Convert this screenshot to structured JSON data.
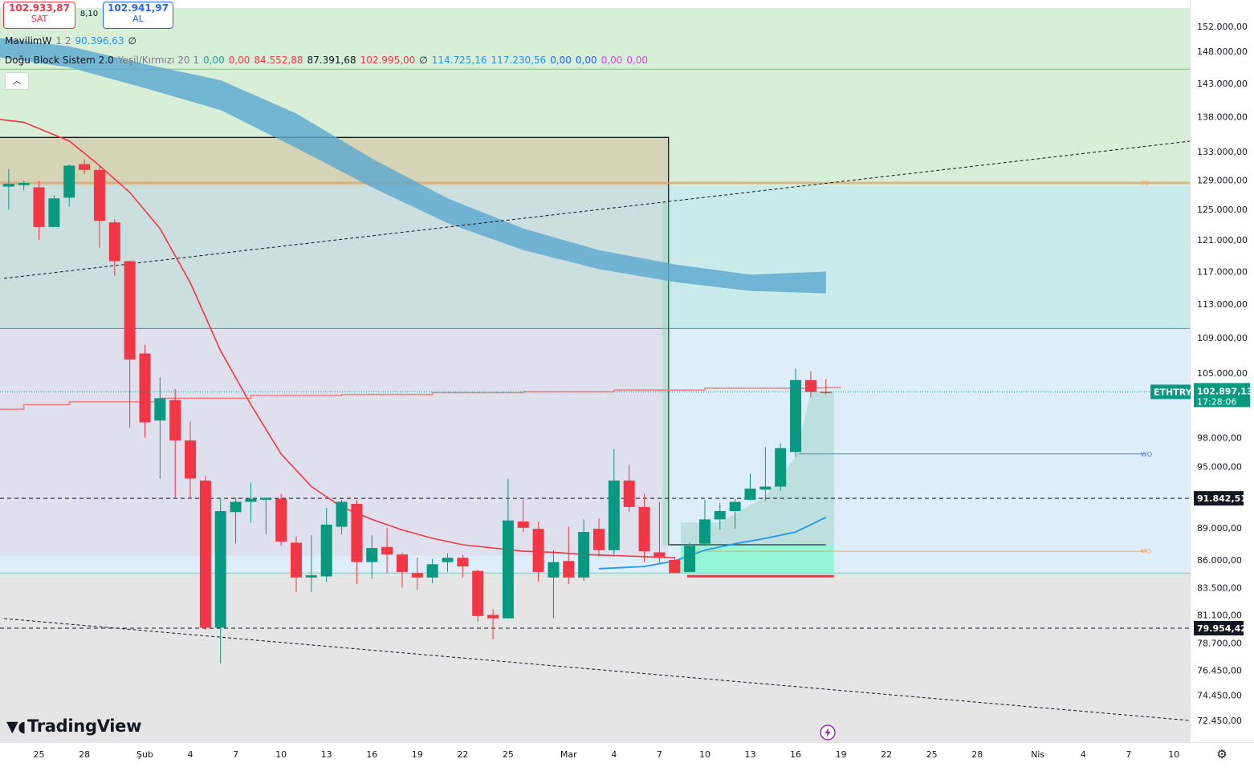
{
  "quote": {
    "sell_price": "102.933,87",
    "sell_label": "SAT",
    "spread": "8,10",
    "buy_price": "102.941,97",
    "buy_label": "AL"
  },
  "legend": {
    "line1": {
      "name": "MavilimW",
      "params": "1 2",
      "value": "90.396,63",
      "marker": "∅"
    },
    "line2": {
      "name": "Doğu Block Sistem 2.0",
      "params": "Yeşil/Kırmızı 20 1",
      "values": [
        {
          "text": "0,00",
          "color": "#26a69a"
        },
        {
          "text": "0,00",
          "color": "#f23645"
        },
        {
          "text": "84.552,88",
          "color": "#f23645"
        },
        {
          "text": "87.391,68",
          "color": "#131722"
        },
        {
          "text": "102.995,00",
          "color": "#f23645"
        },
        {
          "text": "∅",
          "color": "#131722"
        },
        {
          "text": "114.725,16",
          "color": "#2196f3"
        },
        {
          "text": "117.230,56",
          "color": "#2196f3"
        },
        {
          "text": "0,00",
          "color": "#2962ff"
        },
        {
          "text": "0,00",
          "color": "#2962ff"
        },
        {
          "text": "0,00",
          "color": "#e040fb"
        },
        {
          "text": "0,00",
          "color": "#e040fb"
        }
      ]
    },
    "collapse_glyph": "︿"
  },
  "branding": {
    "logo_text": "TradingView"
  },
  "chart_data": {
    "type": "candlestick",
    "symbol": "ETHTRY",
    "last_price": "102.897,13",
    "countdown": "17:28:06",
    "y_axis": {
      "scale": "log",
      "range": [
        70800,
        155000
      ],
      "ticks": [
        152000,
        148000,
        143000,
        138000,
        133000,
        129000,
        125000,
        121000,
        117000,
        113000,
        109000,
        105000,
        98000,
        95000,
        89000,
        86000,
        83500,
        81100,
        78700,
        76450,
        74450,
        72450
      ],
      "tick_labels": [
        "152.000,00",
        "148.000,00",
        "143.000,00",
        "138.000,00",
        "133.000,00",
        "129.000,00",
        "125.000,00",
        "121.000,00",
        "117.000,00",
        "113.000,00",
        "109.000,00",
        "105.000,00",
        "98.000,00",
        "95.000,00",
        "89.000,00",
        "86.000,00",
        "83.500,00",
        "81.100,00",
        "78.700,00",
        "76.450,00",
        "74.450,00",
        "72.450,00"
      ]
    },
    "x_axis": {
      "tick_labels": [
        "25",
        "28",
        "Şub",
        "4",
        "7",
        "10",
        "13",
        "16",
        "19",
        "22",
        "25",
        "Mar",
        "4",
        "7",
        "10",
        "13",
        "16",
        "19",
        "22",
        "25",
        "28",
        "Nis",
        "4",
        "7",
        "10"
      ],
      "tick_day_index": [
        -7,
        -4,
        0,
        3,
        6,
        9,
        12,
        15,
        18,
        21,
        24,
        28,
        31,
        34,
        37,
        40,
        43,
        46,
        49,
        52,
        55,
        59,
        62,
        65,
        68
      ]
    },
    "candles": [
      {
        "d": -9,
        "o": 128100,
        "h": 130500,
        "l": 125000,
        "c": 128500
      },
      {
        "d": -8,
        "o": 128300,
        "h": 128900,
        "l": 127600,
        "c": 128600
      },
      {
        "d": -7,
        "o": 128000,
        "h": 128900,
        "l": 121000,
        "c": 122700
      },
      {
        "d": -6,
        "o": 122700,
        "h": 126900,
        "l": 122700,
        "c": 126500
      },
      {
        "d": -5,
        "o": 126600,
        "h": 131200,
        "l": 125400,
        "c": 131000
      },
      {
        "d": -4,
        "o": 131200,
        "h": 131900,
        "l": 129800,
        "c": 130400
      },
      {
        "d": -3,
        "o": 130400,
        "h": 130900,
        "l": 120000,
        "c": 123500
      },
      {
        "d": -2,
        "o": 123300,
        "h": 123700,
        "l": 116500,
        "c": 118300
      },
      {
        "d": -1,
        "o": 118300,
        "h": 118300,
        "l": 99000,
        "c": 106500
      },
      {
        "d": 0,
        "o": 107200,
        "h": 108200,
        "l": 98000,
        "c": 99600
      },
      {
        "d": 1,
        "o": 99800,
        "h": 104500,
        "l": 93800,
        "c": 102200
      },
      {
        "d": 2,
        "o": 102000,
        "h": 103200,
        "l": 91900,
        "c": 97700
      },
      {
        "d": 3,
        "o": 97700,
        "h": 99700,
        "l": 91800,
        "c": 93800
      },
      {
        "d": 4,
        "o": 93600,
        "h": 94100,
        "l": 79800,
        "c": 80000
      },
      {
        "d": 5,
        "o": 80000,
        "h": 91800,
        "l": 77000,
        "c": 90600
      },
      {
        "d": 6,
        "o": 90500,
        "h": 91900,
        "l": 87500,
        "c": 91500
      },
      {
        "d": 7,
        "o": 91500,
        "h": 93400,
        "l": 89500,
        "c": 91800
      },
      {
        "d": 8,
        "o": 91700,
        "h": 91800,
        "l": 88400,
        "c": 91900
      },
      {
        "d": 9,
        "o": 91800,
        "h": 92300,
        "l": 87300,
        "c": 87700
      },
      {
        "d": 10,
        "o": 87600,
        "h": 88200,
        "l": 83100,
        "c": 84400
      },
      {
        "d": 11,
        "o": 84400,
        "h": 88300,
        "l": 83100,
        "c": 84600
      },
      {
        "d": 12,
        "o": 84500,
        "h": 90900,
        "l": 84000,
        "c": 89300
      },
      {
        "d": 13,
        "o": 89100,
        "h": 91700,
        "l": 88400,
        "c": 91500
      },
      {
        "d": 14,
        "o": 91300,
        "h": 91700,
        "l": 83800,
        "c": 85800
      },
      {
        "d": 15,
        "o": 85800,
        "h": 88300,
        "l": 84300,
        "c": 87100
      },
      {
        "d": 16,
        "o": 87200,
        "h": 89000,
        "l": 84800,
        "c": 86500
      },
      {
        "d": 17,
        "o": 86500,
        "h": 86700,
        "l": 83500,
        "c": 84900
      },
      {
        "d": 18,
        "o": 84800,
        "h": 86200,
        "l": 83300,
        "c": 84400
      },
      {
        "d": 19,
        "o": 84400,
        "h": 86100,
        "l": 83900,
        "c": 85600
      },
      {
        "d": 20,
        "o": 85800,
        "h": 86600,
        "l": 84900,
        "c": 86200
      },
      {
        "d": 21,
        "o": 86200,
        "h": 86500,
        "l": 84400,
        "c": 85400
      },
      {
        "d": 22,
        "o": 85000,
        "h": 85100,
        "l": 80500,
        "c": 81000
      },
      {
        "d": 23,
        "o": 81100,
        "h": 81600,
        "l": 79000,
        "c": 80800
      },
      {
        "d": 24,
        "o": 80800,
        "h": 93800,
        "l": 80800,
        "c": 89700
      },
      {
        "d": 25,
        "o": 89600,
        "h": 91700,
        "l": 88600,
        "c": 89000
      },
      {
        "d": 26,
        "o": 88900,
        "h": 89600,
        "l": 84000,
        "c": 84900
      },
      {
        "d": 27,
        "o": 84400,
        "h": 86900,
        "l": 80800,
        "c": 85800
      },
      {
        "d": 28,
        "o": 85900,
        "h": 89100,
        "l": 83800,
        "c": 84400
      },
      {
        "d": 29,
        "o": 84400,
        "h": 89800,
        "l": 84100,
        "c": 88600
      },
      {
        "d": 30,
        "o": 88900,
        "h": 89900,
        "l": 86300,
        "c": 86900
      },
      {
        "d": 31,
        "o": 86900,
        "h": 96800,
        "l": 86300,
        "c": 93600
      },
      {
        "d": 32,
        "o": 93600,
        "h": 95200,
        "l": 90500,
        "c": 91000
      },
      {
        "d": 33,
        "o": 91000,
        "h": 92300,
        "l": 85800,
        "c": 86800
      },
      {
        "d": 34,
        "o": 86700,
        "h": 91500,
        "l": 85600,
        "c": 86300
      },
      {
        "d": 35,
        "o": 86000,
        "h": 86300,
        "l": 84800,
        "c": 84800
      },
      {
        "d": 36,
        "o": 84900,
        "h": 87600,
        "l": 84900,
        "c": 87300
      },
      {
        "d": 37,
        "o": 87500,
        "h": 91700,
        "l": 87300,
        "c": 89800
      },
      {
        "d": 38,
        "o": 89800,
        "h": 91400,
        "l": 88800,
        "c": 90600
      },
      {
        "d": 39,
        "o": 90600,
        "h": 91800,
        "l": 88900,
        "c": 91500
      },
      {
        "d": 40,
        "o": 91700,
        "h": 94300,
        "l": 91600,
        "c": 92800
      },
      {
        "d": 41,
        "o": 92700,
        "h": 97000,
        "l": 91600,
        "c": 93000
      },
      {
        "d": 42,
        "o": 93000,
        "h": 97400,
        "l": 92600,
        "c": 96900
      },
      {
        "d": 43,
        "o": 96500,
        "h": 105500,
        "l": 96000,
        "c": 104200
      },
      {
        "d": 44,
        "o": 104200,
        "h": 105200,
        "l": 102300,
        "c": 102900
      },
      {
        "d": 45,
        "o": 102900,
        "h": 104300,
        "l": 102600,
        "c": 102897
      }
    ],
    "horizontal_lines": [
      {
        "price": 91842.51,
        "label": "91.842,51",
        "style": "dashed"
      },
      {
        "price": 79954.42,
        "label": "79.954,42",
        "style": "dashed"
      }
    ],
    "levels": [
      {
        "label": "YO",
        "price": 128600,
        "color": "#f7a35c"
      },
      {
        "label": "WO",
        "price": 96300,
        "color": "#5b7fd6"
      },
      {
        "label": "MO",
        "price": 86800,
        "color": "#f7a35c"
      }
    ],
    "zones": [
      {
        "from": 128200,
        "to": 155000,
        "color": "#d6efd6"
      },
      {
        "from": 110100,
        "to": 128200,
        "color": "#c9ecea"
      },
      {
        "from": 84800,
        "to": 110100,
        "color": "#ddeefa"
      },
      {
        "from": 70800,
        "to": 84800,
        "color": "#e5e5e5"
      }
    ],
    "zone_lines": [
      145200,
      110100,
      84800
    ],
    "cloud_band": {
      "days": [
        -11,
        -5,
        0,
        5,
        10,
        15,
        20,
        25,
        30,
        35,
        40,
        45
      ],
      "upper": [
        150500,
        148800,
        146000,
        143500,
        138500,
        132000,
        126500,
        122500,
        119700,
        117900,
        116600,
        117000
      ],
      "lower": [
        147500,
        145500,
        142300,
        139000,
        133500,
        128000,
        123200,
        119700,
        117300,
        115700,
        114600,
        114300
      ]
    },
    "red_ma": {
      "days": [
        -11,
        -8,
        -5,
        -3,
        -1,
        1,
        3,
        5,
        7,
        9,
        11,
        13,
        15,
        17,
        19,
        21,
        23,
        25,
        27,
        29,
        31,
        33,
        35
      ],
      "values": [
        138000,
        137200,
        134500,
        131000,
        127300,
        122500,
        115600,
        107500,
        101500,
        96300,
        93000,
        91000,
        89800,
        88800,
        88000,
        87400,
        87100,
        86800,
        86700,
        86500,
        86400,
        86300,
        86200
      ]
    },
    "stepped_ma": {
      "days": [
        -11,
        -8,
        -8,
        -5,
        -5,
        1,
        1,
        7,
        7,
        13,
        13,
        19,
        19,
        25,
        25,
        31,
        31,
        34,
        37,
        37,
        44,
        46
      ],
      "values": [
        101000,
        101000,
        101500,
        101500,
        101800,
        101800,
        102200,
        102200,
        102500,
        102500,
        102600,
        102600,
        102800,
        102800,
        102900,
        102900,
        103100,
        103100,
        103100,
        103300,
        103300,
        103400
      ]
    },
    "blue_ma": {
      "days": [
        30,
        33,
        35,
        37,
        39,
        41,
        43,
        45
      ],
      "values": [
        85200,
        85400,
        85900,
        86900,
        87500,
        88000,
        88600,
        90000
      ]
    },
    "position_box": {
      "entry": 87300,
      "stop": 84800,
      "target": 132500,
      "start_day": 37,
      "end_day": 45
    }
  }
}
